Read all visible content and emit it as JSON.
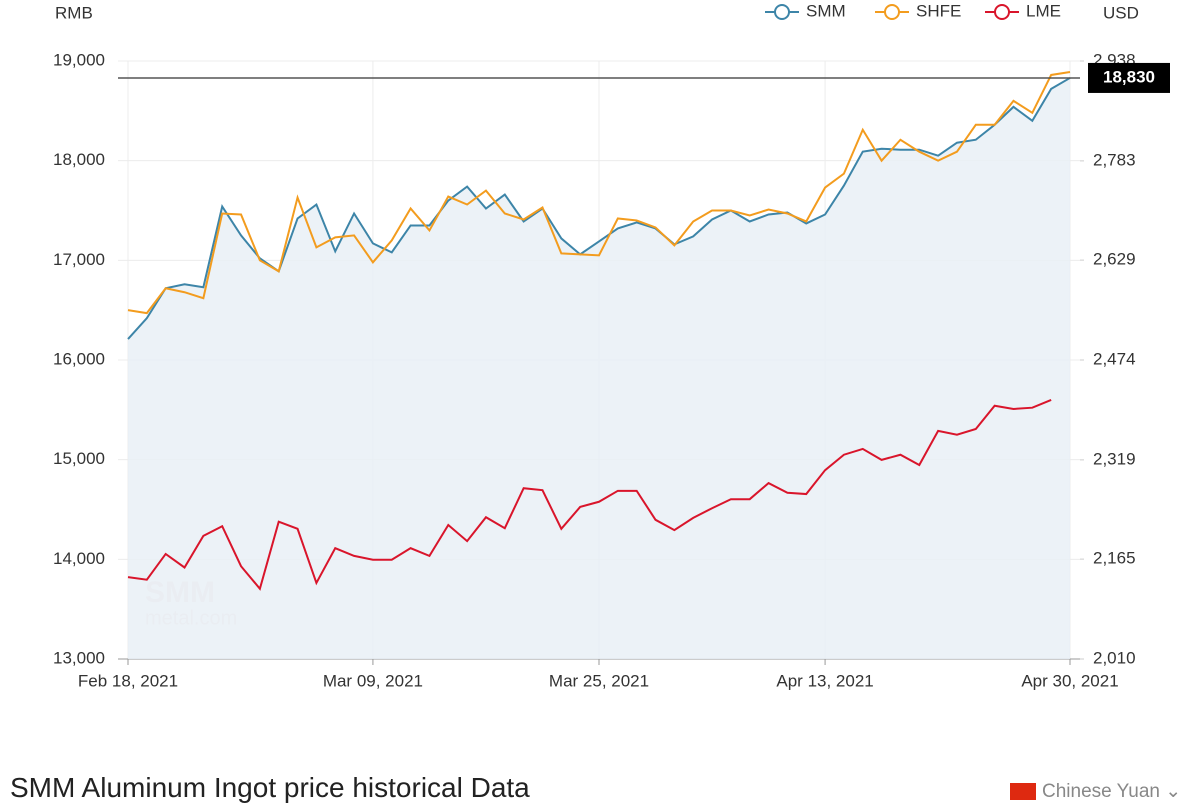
{
  "chart_data": {
    "type": "line",
    "y_label": "RMB",
    "y2_label": "USD",
    "categories": [
      "Feb 18, 2021",
      null,
      null,
      null,
      null,
      null,
      null,
      null,
      null,
      null,
      null,
      null,
      null,
      "Mar 09, 2021",
      null,
      null,
      null,
      null,
      null,
      null,
      null,
      null,
      null,
      null,
      null,
      "Mar 25, 2021",
      null,
      null,
      null,
      null,
      null,
      null,
      null,
      null,
      null,
      null,
      null,
      "Apr 13, 2021",
      null,
      null,
      null,
      null,
      null,
      null,
      null,
      null,
      null,
      null,
      null,
      null,
      "Apr 30, 2021"
    ],
    "series": [
      {
        "name": "SMM",
        "color": "#3d85a8",
        "area": true,
        "values": [
          16210,
          16420,
          16720,
          16760,
          16730,
          17540,
          17250,
          17020,
          16890,
          17420,
          17560,
          17090,
          17470,
          17170,
          17080,
          17350,
          17350,
          17600,
          17740,
          17520,
          17660,
          17390,
          17520,
          17220,
          17060,
          17190,
          17320,
          17380,
          17320,
          17160,
          17240,
          17410,
          17500,
          17390,
          17460,
          17480,
          17370,
          17460,
          17750,
          18090,
          18120,
          18110,
          18110,
          18050,
          18180,
          18210,
          18360,
          18540,
          18400,
          18720,
          18830
        ]
      },
      {
        "name": "SHFE",
        "color": "#f39c1e",
        "values": [
          16500,
          16470,
          16720,
          16680,
          16620,
          17470,
          17460,
          17000,
          16890,
          17630,
          17130,
          17230,
          17250,
          16980,
          17200,
          17520,
          17300,
          17640,
          17560,
          17700,
          17470,
          17410,
          17530,
          17070,
          17060,
          17050,
          17420,
          17400,
          17330,
          17150,
          17390,
          17500,
          17500,
          17450,
          17510,
          17470,
          17390,
          17730,
          17870,
          18310,
          18000,
          18210,
          18090,
          18000,
          18090,
          18360,
          18360,
          18600,
          18480,
          18860,
          18890
        ]
      },
      {
        "name": "LME",
        "color": "#d9152b",
        "axis": "y2",
        "values": [
          2137,
          2133,
          2173,
          2152,
          2201,
          2216,
          2154,
          2119,
          2223,
          2212,
          2128,
          2182,
          2170,
          2164,
          2164,
          2182,
          2170,
          2218,
          2193,
          2230,
          2213,
          2275,
          2272,
          2212,
          2246,
          2254,
          2271,
          2271,
          2226,
          2210,
          2229,
          2244,
          2258,
          2258,
          2283,
          2268,
          2266,
          2303,
          2327,
          2336,
          2319,
          2327,
          2311,
          2364,
          2358,
          2367,
          2403,
          2398,
          2400,
          2412,
          null
        ]
      }
    ],
    "ylim": [
      13000,
      19000
    ],
    "yticks": [
      {
        "value": 13000,
        "label": "13,000"
      },
      {
        "value": 14000,
        "label": "14,000"
      },
      {
        "value": 15000,
        "label": "15,000"
      },
      {
        "value": 16000,
        "label": "16,000"
      },
      {
        "value": 17000,
        "label": "17,000"
      },
      {
        "value": 18000,
        "label": "18,000"
      },
      {
        "value": 19000,
        "label": "19,000"
      }
    ],
    "y2lim": [
      2010,
      2938
    ],
    "y2ticks": [
      {
        "value": 2010,
        "label": "2,010"
      },
      {
        "value": 2165,
        "label": "2,165"
      },
      {
        "value": 2319,
        "label": "2,319"
      },
      {
        "value": 2474,
        "label": "2,474"
      },
      {
        "value": 2629,
        "label": "2,629"
      },
      {
        "value": 2783,
        "label": "2,783"
      },
      {
        "value": 2938,
        "label": "2,938"
      }
    ],
    "reference_line": {
      "value": 18830,
      "label": "18,830"
    },
    "watermark": [
      "SMM",
      "metal.com"
    ],
    "grid": true,
    "legend": "top-right"
  },
  "section": {
    "title": "SMM Aluminum Ingot price historical Data",
    "currency": "Chinese Yuan"
  }
}
